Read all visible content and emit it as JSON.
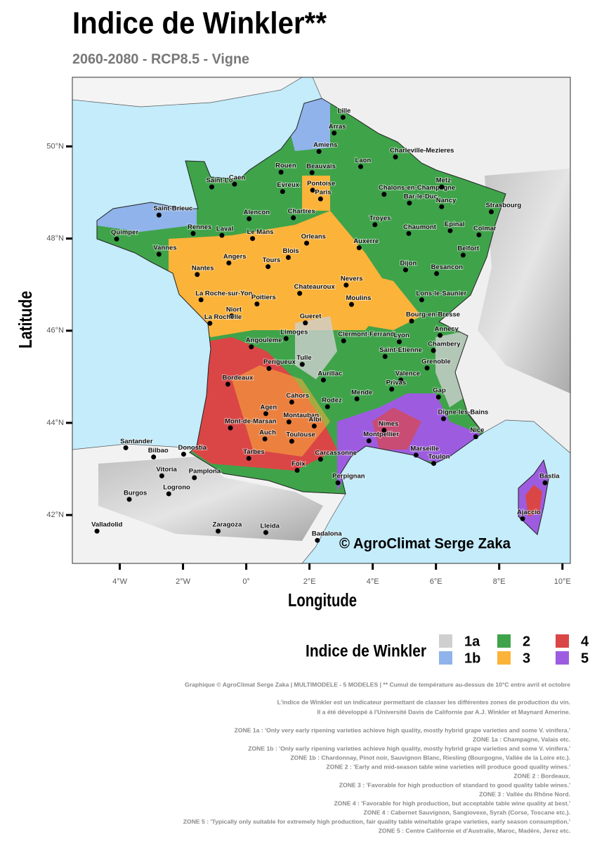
{
  "map": {
    "title": "Indice de Winkler**",
    "subtitle": "2060-2080 - RCP8.5 - Vigne",
    "xlabel": "Longitude",
    "ylabel": "Latitude",
    "xlim": [
      -5.5,
      10.25
    ],
    "ylim": [
      40.95,
      51.5
    ],
    "xticks": [
      {
        "value": -4,
        "label": "4°W"
      },
      {
        "value": -2,
        "label": "2°W"
      },
      {
        "value": 0,
        "label": "0°"
      },
      {
        "value": 2,
        "label": "2°E"
      },
      {
        "value": 4,
        "label": "4°E"
      },
      {
        "value": 6,
        "label": "6°E"
      },
      {
        "value": 8,
        "label": "8°E"
      },
      {
        "value": 10,
        "label": "10°E"
      }
    ],
    "yticks": [
      {
        "value": 42,
        "label": "42°N"
      },
      {
        "value": 44,
        "label": "44°N"
      },
      {
        "value": 46,
        "label": "46°N"
      },
      {
        "value": 48,
        "label": "48°N"
      },
      {
        "value": 50,
        "label": "50°N"
      }
    ],
    "credit": "© AgroClimat Serge Zaka",
    "cities": [
      {
        "name": "Lille",
        "lon": 3.06,
        "lat": 50.63
      },
      {
        "name": "Arras",
        "lon": 2.78,
        "lat": 50.29
      },
      {
        "name": "Amiens",
        "lon": 2.3,
        "lat": 49.89
      },
      {
        "name": "Charleville-Mezieres",
        "lon": 4.72,
        "lat": 49.77
      },
      {
        "name": "Rouen",
        "lon": 1.1,
        "lat": 49.44
      },
      {
        "name": "Beauvais",
        "lon": 2.08,
        "lat": 49.43
      },
      {
        "name": "Laon",
        "lon": 3.62,
        "lat": 49.56
      },
      {
        "name": "Caen",
        "lon": -0.37,
        "lat": 49.18
      },
      {
        "name": "Saint-Lo",
        "lon": -1.09,
        "lat": 49.12
      },
      {
        "name": "Evreux",
        "lon": 1.15,
        "lat": 49.02
      },
      {
        "name": "Pontoise",
        "lon": 2.1,
        "lat": 49.05
      },
      {
        "name": "Paris",
        "lon": 2.35,
        "lat": 48.86
      },
      {
        "name": "Chalons-en-Champagne",
        "lon": 4.36,
        "lat": 48.96
      },
      {
        "name": "Metz",
        "lon": 6.18,
        "lat": 49.12
      },
      {
        "name": "Bar-le-Duc",
        "lon": 5.16,
        "lat": 48.77
      },
      {
        "name": "Nancy",
        "lon": 6.18,
        "lat": 48.69
      },
      {
        "name": "Strasbourg",
        "lon": 7.75,
        "lat": 48.58
      },
      {
        "name": "Saint-Brieuc",
        "lon": -2.76,
        "lat": 48.51
      },
      {
        "name": "Alencon",
        "lon": 0.09,
        "lat": 48.43
      },
      {
        "name": "Chartres",
        "lon": 1.49,
        "lat": 48.45
      },
      {
        "name": "Troyes",
        "lon": 4.07,
        "lat": 48.3
      },
      {
        "name": "Epinal",
        "lon": 6.45,
        "lat": 48.17
      },
      {
        "name": "Colmar",
        "lon": 7.36,
        "lat": 48.08
      },
      {
        "name": "Quimper",
        "lon": -4.1,
        "lat": 47.99
      },
      {
        "name": "Rennes",
        "lon": -1.68,
        "lat": 48.11
      },
      {
        "name": "Laval",
        "lon": -0.77,
        "lat": 48.07
      },
      {
        "name": "Le Mans",
        "lon": 0.2,
        "lat": 48.0
      },
      {
        "name": "Orleans",
        "lon": 1.91,
        "lat": 47.9
      },
      {
        "name": "Auxerre",
        "lon": 3.57,
        "lat": 47.8
      },
      {
        "name": "Chaumont",
        "lon": 5.14,
        "lat": 48.11
      },
      {
        "name": "Vannes",
        "lon": -2.76,
        "lat": 47.66
      },
      {
        "name": "Blois",
        "lon": 1.33,
        "lat": 47.59
      },
      {
        "name": "Angers",
        "lon": -0.55,
        "lat": 47.47
      },
      {
        "name": "Tours",
        "lon": 0.69,
        "lat": 47.39
      },
      {
        "name": "Dijon",
        "lon": 5.04,
        "lat": 47.32
      },
      {
        "name": "Besancon",
        "lon": 6.02,
        "lat": 47.24
      },
      {
        "name": "Belfort",
        "lon": 6.86,
        "lat": 47.64
      },
      {
        "name": "Nantes",
        "lon": -1.55,
        "lat": 47.22
      },
      {
        "name": "Nevers",
        "lon": 3.16,
        "lat": 46.99
      },
      {
        "name": "La Roche-sur-Yon",
        "lon": -1.43,
        "lat": 46.67
      },
      {
        "name": "Poitiers",
        "lon": 0.34,
        "lat": 46.58
      },
      {
        "name": "Chateauroux",
        "lon": 1.69,
        "lat": 46.81
      },
      {
        "name": "Moulins",
        "lon": 3.33,
        "lat": 46.57
      },
      {
        "name": "Lons-le-Saunier",
        "lon": 5.55,
        "lat": 46.67
      },
      {
        "name": "Bourg-en-Bresse",
        "lon": 5.23,
        "lat": 46.21
      },
      {
        "name": "Niort",
        "lon": -0.46,
        "lat": 46.32
      },
      {
        "name": "La Rochelle",
        "lon": -1.15,
        "lat": 46.16
      },
      {
        "name": "Gueret",
        "lon": 1.87,
        "lat": 46.17
      },
      {
        "name": "Annecy",
        "lon": 6.13,
        "lat": 45.9
      },
      {
        "name": "Limoges",
        "lon": 1.26,
        "lat": 45.83
      },
      {
        "name": "Clermont-Ferrand",
        "lon": 3.08,
        "lat": 45.78
      },
      {
        "name": "Lyon",
        "lon": 4.84,
        "lat": 45.76
      },
      {
        "name": "Chambery",
        "lon": 5.92,
        "lat": 45.57
      },
      {
        "name": "Angouleme",
        "lon": 0.16,
        "lat": 45.65
      },
      {
        "name": "Saint-Etienne",
        "lon": 4.39,
        "lat": 45.44
      },
      {
        "name": "Perigueux",
        "lon": 0.72,
        "lat": 45.18
      },
      {
        "name": "Tulle",
        "lon": 1.77,
        "lat": 45.27
      },
      {
        "name": "Grenoble",
        "lon": 5.72,
        "lat": 45.19
      },
      {
        "name": "Bordeaux",
        "lon": -0.58,
        "lat": 44.84
      },
      {
        "name": "Aurillac",
        "lon": 2.44,
        "lat": 44.93
      },
      {
        "name": "Valence",
        "lon": 4.89,
        "lat": 44.93
      },
      {
        "name": "Privas",
        "lon": 4.6,
        "lat": 44.73
      },
      {
        "name": "Mende",
        "lon": 3.5,
        "lat": 44.52
      },
      {
        "name": "Gap",
        "lon": 6.08,
        "lat": 44.56
      },
      {
        "name": "Cahors",
        "lon": 1.44,
        "lat": 44.45
      },
      {
        "name": "Rodez",
        "lon": 2.57,
        "lat": 44.35
      },
      {
        "name": "Agen",
        "lon": 0.62,
        "lat": 44.2
      },
      {
        "name": "Montauban",
        "lon": 1.35,
        "lat": 44.02
      },
      {
        "name": "Albi",
        "lon": 2.15,
        "lat": 43.93
      },
      {
        "name": "Digne-les-Bains",
        "lon": 6.24,
        "lat": 44.09
      },
      {
        "name": "Mont-de-Marsan",
        "lon": -0.5,
        "lat": 43.89
      },
      {
        "name": "Nimes",
        "lon": 4.36,
        "lat": 43.84
      },
      {
        "name": "Nice",
        "lon": 7.26,
        "lat": 43.7
      },
      {
        "name": "Auch",
        "lon": 0.59,
        "lat": 43.65
      },
      {
        "name": "Toulouse",
        "lon": 1.44,
        "lat": 43.6
      },
      {
        "name": "Montpellier",
        "lon": 3.88,
        "lat": 43.61
      },
      {
        "name": "Marseille",
        "lon": 5.37,
        "lat": 43.3
      },
      {
        "name": "Toulon",
        "lon": 5.93,
        "lat": 43.12
      },
      {
        "name": "Tarbes",
        "lon": 0.08,
        "lat": 43.23
      },
      {
        "name": "Carcassonne",
        "lon": 2.35,
        "lat": 43.21
      },
      {
        "name": "Foix",
        "lon": 1.61,
        "lat": 42.97
      },
      {
        "name": "Perpignan",
        "lon": 2.9,
        "lat": 42.7
      },
      {
        "name": "Santander",
        "lon": -3.81,
        "lat": 43.46
      },
      {
        "name": "Bilbao",
        "lon": -2.93,
        "lat": 43.26
      },
      {
        "name": "Donostia",
        "lon": -1.98,
        "lat": 43.32
      },
      {
        "name": "Vitoria",
        "lon": -2.67,
        "lat": 42.85
      },
      {
        "name": "Pamplona",
        "lon": -1.64,
        "lat": 42.81
      },
      {
        "name": "Burgos",
        "lon": -3.7,
        "lat": 42.34
      },
      {
        "name": "Logrono",
        "lon": -2.45,
        "lat": 42.46
      },
      {
        "name": "Zaragoza",
        "lon": -0.89,
        "lat": 41.65
      },
      {
        "name": "Lleida",
        "lon": 0.62,
        "lat": 41.62
      },
      {
        "name": "Valladolid",
        "lon": -4.72,
        "lat": 41.65
      },
      {
        "name": "Badalona",
        "lon": 2.25,
        "lat": 41.45
      },
      {
        "name": "Bastia",
        "lon": 9.45,
        "lat": 42.7
      },
      {
        "name": "Ajaccio",
        "lon": 8.74,
        "lat": 41.92
      }
    ],
    "legend": {
      "title": "Indice de Winkler",
      "entries": [
        {
          "name": "1a",
          "color": "#cfcfcf"
        },
        {
          "name": "1b",
          "color": "#8fb3ea"
        },
        {
          "name": "2",
          "color": "#3fa34a"
        },
        {
          "name": "3",
          "color": "#fbb33a"
        },
        {
          "name": "4",
          "color": "#da4646"
        },
        {
          "name": "5",
          "color": "#9d5ce0"
        }
      ]
    },
    "notes": [
      "Graphique © AgroClimat Serge Zaka | MULTIMODELE - 5 MODELES | ** Cumul de température au-dessus de 10°C entre avril et octobre",
      "L'indice de Winkler est un indicateur permettant de classer les différentes zones de production du vin.",
      "Il a été développé à l'Université Davis de Californie par A.J. Winkler et Maynard Amerine.",
      "ZONE 1a : 'Only very early ripening varieties achieve high quality, mostly hybrid grape varieties and some V. vinifera.'",
      "ZONE 1a : Champagne, Valais etc.",
      "ZONE 1b : 'Only early ripening varieties achieve high quality, mostly hybrid grape varieties and some V. vinifera.'",
      "ZONE 1b : Chardonnay, Pinot noir, Sauvignon Blanc, Riesling (Bourgogne, Vallée de la Loire etc.).",
      "ZONE 2  : 'Early and mid-season table wine varieties will produce good quality wines.'",
      "ZONE 2 : Bordeaux.",
      "ZONE 3  : 'Favorable for high production of standard to good quality table wines.'",
      "ZONE 3 : Vallée du Rhône Nord.",
      "ZONE 4  : 'Favorable for high production, but acceptable table wine quality at best.'",
      "ZONE 4 : Cabernet Sauvignon, Sangiovexe, Syrah (Corse, Toscane etc.).",
      "ZONE 5  : 'Typically only suitable for extremely high production, fair quality table wine/table grape varieties, early season consumption.'",
      "ZONE 5 : Centre Californie et d'Australie, Maroc, Madère, Jerez etc."
    ]
  }
}
